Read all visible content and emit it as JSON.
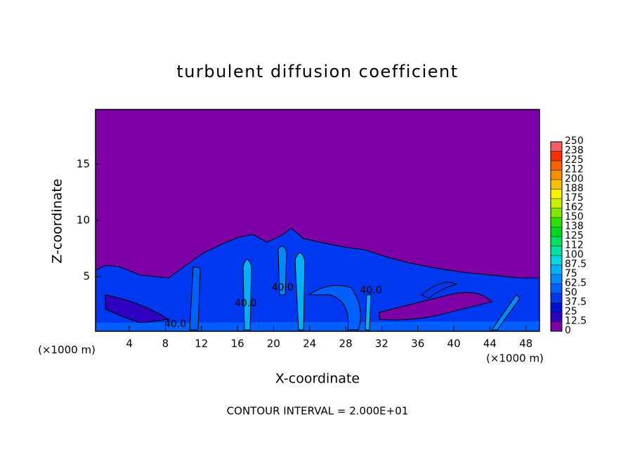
{
  "chart_data": {
    "type": "contour",
    "title": "turbulent diffusion coefficient",
    "xlabel": "X-coordinate",
    "ylabel": "Z-coordinate",
    "x_unit": "(×1000 m)",
    "annotation": "CONTOUR INTERVAL = 2.000E+01",
    "xlim": [
      0.25,
      49.5
    ],
    "ylim": [
      0.125,
      19.875
    ],
    "xticks": [
      4,
      8,
      12,
      16,
      20,
      24,
      28,
      32,
      36,
      40,
      44,
      48
    ],
    "yticks": [
      5,
      10,
      15
    ],
    "contour_labels": [
      {
        "value": 40,
        "label": "40.0",
        "x": 9.1,
        "z": 0.75
      },
      {
        "value": 40,
        "label": "40.0",
        "x": 16.9,
        "z": 2.6
      },
      {
        "value": 40,
        "label": "40.0",
        "x": 21,
        "z": 4
      },
      {
        "value": 40,
        "label": "40.0",
        "x": 30.8,
        "z": 3.75
      }
    ],
    "colorbar": {
      "levels": [
        0,
        12.5,
        25,
        37.5,
        50,
        62.5,
        75,
        87.5,
        100,
        {
          "value": 112.5,
          "label": "112"
        },
        125,
        {
          "value": 137.5,
          "label": "138"
        },
        150,
        {
          "value": 162.5,
          "label": "162"
        },
        175,
        {
          "value": 187.5,
          "label": "188"
        },
        200,
        {
          "value": 212.5,
          "label": "212"
        },
        225,
        {
          "value": 237.5,
          "label": "238"
        },
        250
      ],
      "colors": [
        "#7d00a6",
        "#3000c0",
        "#0010d0",
        "#0038f0",
        "#0060ff",
        "#0088ff",
        "#00b0f8",
        "#00d8e0",
        "#00e0a0",
        "#00e060",
        "#00d820",
        "#30e000",
        "#80e800",
        "#c8f000",
        "#f8f000",
        "#f8c000",
        "#f89000",
        "#f86000",
        "#f83000",
        "#f06060"
      ]
    }
  }
}
